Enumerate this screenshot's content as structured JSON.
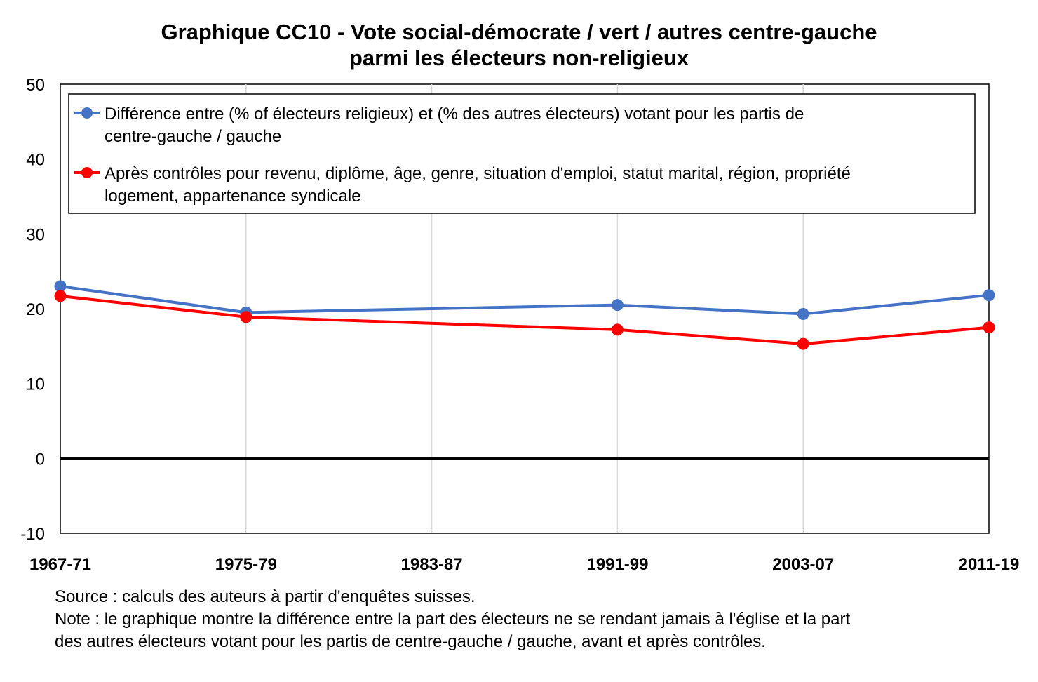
{
  "chart_data": {
    "type": "line",
    "title_line1": "Graphique CC10 - Vote social-démocrate / vert / autres centre-gauche",
    "title_line2": "parmi les électeurs non-religieux",
    "categories": [
      "1967-71",
      "1975-79",
      "1983-87",
      "1991-99",
      "2003-07",
      "2011-19"
    ],
    "ylim": [
      -10,
      50
    ],
    "yticks": [
      "50",
      "40",
      "30",
      "20",
      "10",
      "0",
      "-10"
    ],
    "grid": "vertical",
    "legend_position": "top",
    "series": [
      {
        "name": "Différence entre (% of électeurs religieux) et (% des autres électeurs) votant pour les partis de centre-gauche / gauche",
        "legend_line1": "Différence entre (% of électeurs religieux) et (% des autres électeurs) votant pour les partis de",
        "legend_line2": "centre-gauche / gauche",
        "color": "#4472C4",
        "x": [
          "1967-71",
          "1975-79",
          "1991-99",
          "2003-07",
          "2011-19"
        ],
        "values": [
          23.0,
          19.5,
          20.5,
          19.3,
          21.8
        ]
      },
      {
        "name": "Après contrôles pour revenu, diplôme, âge, genre, situation d'emploi, statut marital, région, propriété logement, appartenance syndicale",
        "legend_line1": "Après contrôles pour revenu, diplôme, âge, genre, situation d'emploi, statut marital, région, propriété",
        "legend_line2": "logement, appartenance syndicale",
        "color": "#FF0000",
        "x": [
          "1967-71",
          "1975-79",
          "1991-99",
          "2003-07",
          "2011-19"
        ],
        "values": [
          21.7,
          18.9,
          17.2,
          15.3,
          17.5
        ]
      }
    ],
    "source": "Source : calculs des auteurs à partir d'enquêtes suisses.",
    "note_line1": "Note : le graphique montre la différence entre la part des électeurs ne se rendant jamais à l'église et la part",
    "note_line2": "des autres électeurs votant pour les partis de centre-gauche / gauche, avant et après contrôles."
  }
}
